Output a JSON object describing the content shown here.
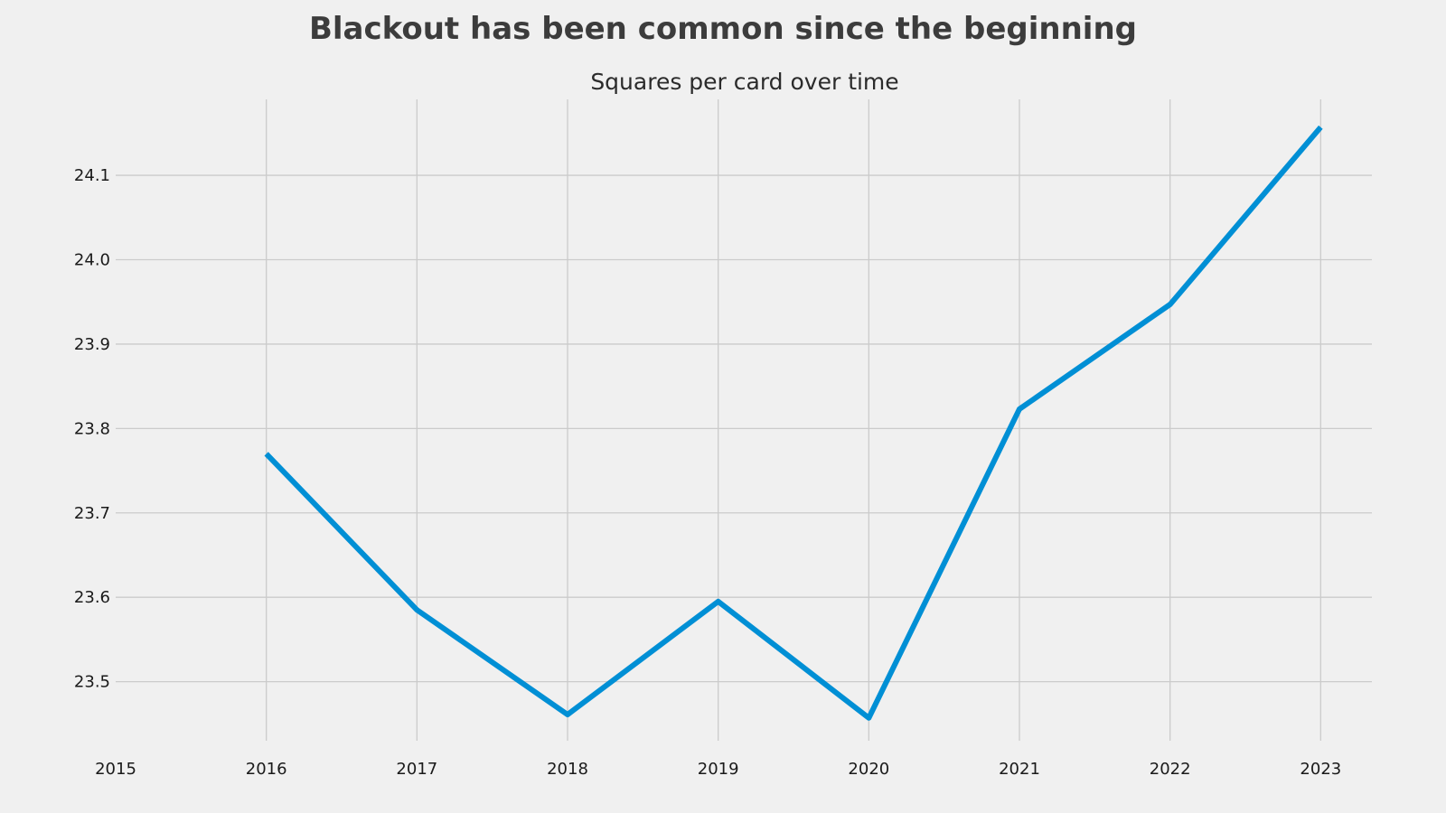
{
  "chart_data": {
    "type": "line",
    "title": "Blackout has been common since the beginning",
    "subtitle": "Squares per card over time",
    "xlabel": "",
    "ylabel": "",
    "x": [
      2016,
      2017,
      2018,
      2019,
      2020,
      2021,
      2022,
      2023
    ],
    "series": [
      {
        "values": [
          23.77,
          23.585,
          23.461,
          23.595,
          23.457,
          23.823,
          23.947,
          24.157
        ],
        "color": "#008fd5"
      }
    ],
    "xticks": [
      2015,
      2016,
      2017,
      2018,
      2019,
      2020,
      2021,
      2022,
      2023
    ],
    "yticks": [
      23.5,
      23.6,
      23.7,
      23.8,
      23.9,
      24.0,
      24.1
    ],
    "ytick_labels": [
      "23.5",
      "23.6",
      "23.7",
      "23.8",
      "23.9",
      "24.0",
      "24.1"
    ],
    "xlim": [
      2015,
      2023.34
    ],
    "ylim": [
      23.43,
      24.19
    ],
    "grid": true,
    "background": "#f0f0f0",
    "grid_color": "#cbcbcb"
  }
}
